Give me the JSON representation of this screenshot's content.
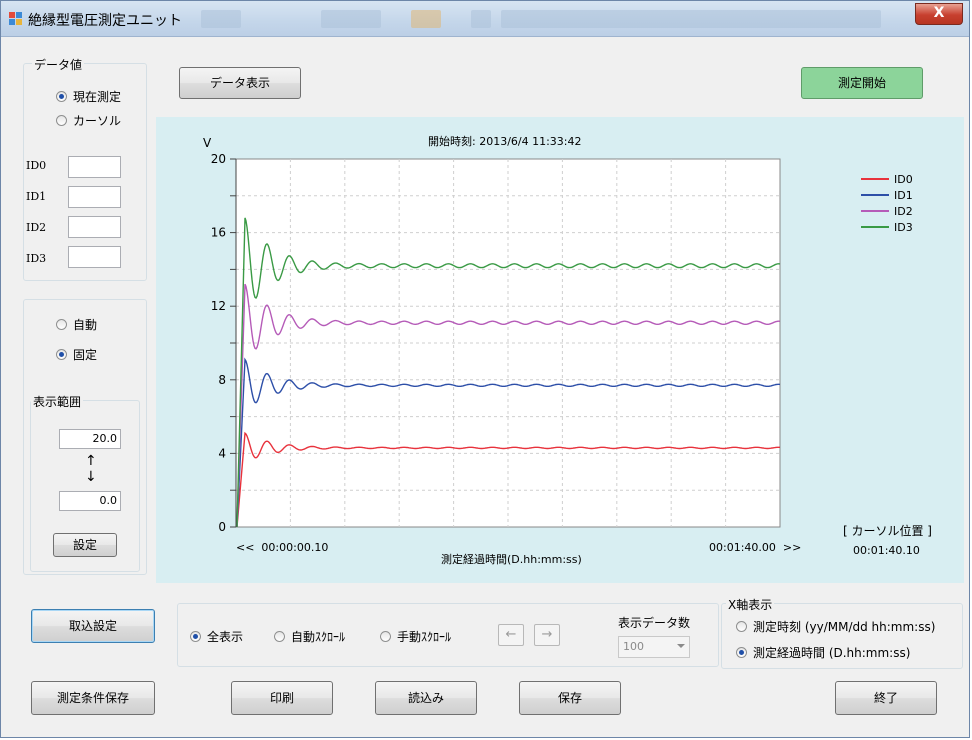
{
  "window": {
    "title": "絶縁型電圧測定ユニット",
    "close_label": "X"
  },
  "data_value": {
    "group_title": "データ値",
    "radio_current": "現在測定",
    "radio_cursor": "カーソル",
    "ids": [
      {
        "label": "ID0",
        "value": ""
      },
      {
        "label": "ID1",
        "value": ""
      },
      {
        "label": "ID2",
        "value": ""
      },
      {
        "label": "ID3",
        "value": ""
      }
    ]
  },
  "range_mode": {
    "radio_auto": "自動",
    "radio_fixed": "固定"
  },
  "display_range": {
    "group_title": "表示範囲",
    "max_value": "20.0",
    "min_value": "0.0",
    "arrow_up": "↑",
    "arrow_down": "↓",
    "set_button": "設定"
  },
  "toolbar": {
    "data_display_button": "データ表示",
    "start_button": "測定開始"
  },
  "chart_data": {
    "type": "line",
    "start_time_label": "開始時刻: 2013/6/4 11:33:42",
    "ylabel": "V",
    "xlabel": "測定経過時間(D.hh:mm:ss)",
    "ylim": [
      0,
      20
    ],
    "yticks": [
      0,
      4,
      8,
      12,
      16,
      20
    ],
    "x_start_label": "<<  00:00:00.10",
    "x_end_label": "00:01:40.00  >>",
    "grid": true,
    "legend_position": "top-right",
    "series": [
      {
        "name": "ID0",
        "color": "#e8323c",
        "steady": 4.3,
        "overshoot": 0.8
      },
      {
        "name": "ID1",
        "color": "#2d4fa8",
        "steady": 7.7,
        "overshoot": 1.4
      },
      {
        "name": "ID2",
        "color": "#b55bb8",
        "steady": 11.1,
        "overshoot": 2.1
      },
      {
        "name": "ID3",
        "color": "#3a9a45",
        "steady": 14.2,
        "overshoot": 2.6
      }
    ]
  },
  "cursor_position": {
    "label": "[ カーソル位置 ]",
    "value": "00:01:40.10"
  },
  "import_settings_button": "取込設定",
  "scroll_mode": {
    "radio_all": "全表示",
    "radio_auto_scroll": "自動ｽｸﾛｰﾙ",
    "radio_manual_scroll": "手動ｽｸﾛｰﾙ",
    "left_arrow": "←",
    "right_arrow": "→"
  },
  "display_count": {
    "label": "表示データ数",
    "value": "100"
  },
  "x_axis_display": {
    "group_title": "X軸表示",
    "radio_time": "測定時刻 (yy/MM/dd hh:mm:ss)",
    "radio_elapsed": "測定経過時間 (D.hh:mm:ss)"
  },
  "bottom_buttons": {
    "save_conditions": "測定条件保存",
    "print": "印刷",
    "load": "読込み",
    "save": "保存",
    "exit": "終了"
  }
}
